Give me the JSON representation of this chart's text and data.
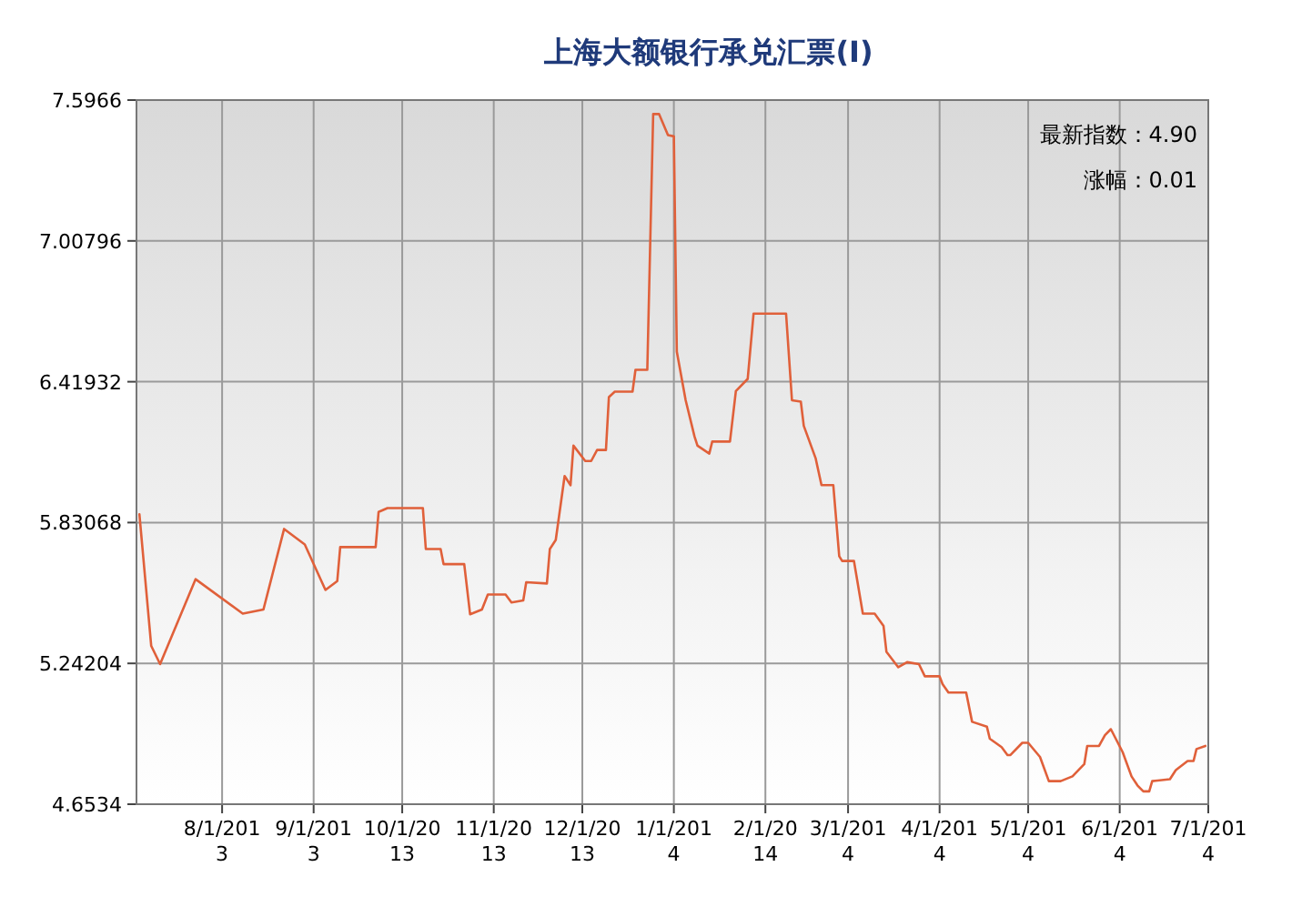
{
  "chart_data": {
    "type": "line",
    "title": "上海大额银行承兑汇票(Ⅰ)",
    "x": [
      "2013-07-04",
      "2013-07-08",
      "2013-07-11",
      "2013-07-23",
      "2013-08-08",
      "2013-08-15",
      "2013-08-22",
      "2013-08-29",
      "2013-09-05",
      "2013-09-09",
      "2013-09-10",
      "2013-09-22",
      "2013-09-23",
      "2013-09-26",
      "2013-10-08",
      "2013-10-09",
      "2013-10-14",
      "2013-10-15",
      "2013-10-22",
      "2013-10-24",
      "2013-10-28",
      "2013-10-30",
      "2013-11-05",
      "2013-11-07",
      "2013-11-11",
      "2013-11-12",
      "2013-11-19",
      "2013-11-20",
      "2013-11-22",
      "2013-11-25",
      "2013-11-27",
      "2013-11-28",
      "2013-12-02",
      "2013-12-04",
      "2013-12-06",
      "2013-12-09",
      "2013-12-10",
      "2013-12-12",
      "2013-12-18",
      "2013-12-19",
      "2013-12-23",
      "2013-12-25",
      "2013-12-27",
      "2013-12-30",
      "2014-01-01",
      "2014-01-02",
      "2014-01-05",
      "2014-01-08",
      "2014-01-09",
      "2014-01-13",
      "2014-01-14",
      "2014-01-20",
      "2014-01-22",
      "2014-01-26",
      "2014-01-28",
      "2014-02-08",
      "2014-02-10",
      "2014-02-13",
      "2014-02-14",
      "2014-02-18",
      "2014-02-20",
      "2014-02-24",
      "2014-02-26",
      "2014-02-27",
      "2014-03-03",
      "2014-03-06",
      "2014-03-10",
      "2014-03-13",
      "2014-03-14",
      "2014-03-18",
      "2014-03-21",
      "2014-03-25",
      "2014-03-27",
      "2014-04-01",
      "2014-04-02",
      "2014-04-04",
      "2014-04-10",
      "2014-04-12",
      "2014-04-17",
      "2014-04-18",
      "2014-04-22",
      "2014-04-24",
      "2014-04-25",
      "2014-04-29",
      "2014-05-01",
      "2014-05-05",
      "2014-05-08",
      "2014-05-12",
      "2014-05-16",
      "2014-05-20",
      "2014-05-21",
      "2014-05-25",
      "2014-05-27",
      "2014-05-29",
      "2014-06-02",
      "2014-06-05",
      "2014-06-07",
      "2014-06-09",
      "2014-06-11",
      "2014-06-12",
      "2014-06-18",
      "2014-06-20",
      "2014-06-24",
      "2014-06-26",
      "2014-06-27",
      "2014-06-30"
    ],
    "series": [
      {
        "color": "#e0603a",
        "values": [
          5.865,
          5.315,
          5.239,
          5.594,
          5.45,
          5.467,
          5.804,
          5.739,
          5.549,
          5.586,
          5.728,
          5.728,
          5.875,
          5.891,
          5.891,
          5.72,
          5.72,
          5.657,
          5.657,
          5.447,
          5.467,
          5.53,
          5.53,
          5.497,
          5.505,
          5.581,
          5.576,
          5.72,
          5.758,
          6.025,
          5.987,
          6.152,
          6.088,
          6.088,
          6.134,
          6.134,
          6.355,
          6.378,
          6.378,
          6.469,
          6.469,
          7.538,
          7.538,
          7.45,
          7.445,
          6.545,
          6.342,
          6.19,
          6.152,
          6.119,
          6.169,
          6.169,
          6.38,
          6.431,
          6.704,
          6.704,
          6.342,
          6.336,
          6.235,
          6.1,
          5.987,
          5.987,
          5.69,
          5.67,
          5.67,
          5.45,
          5.45,
          5.399,
          5.29,
          5.226,
          5.247,
          5.239,
          5.188,
          5.188,
          5.155,
          5.12,
          5.12,
          4.998,
          4.978,
          4.927,
          4.892,
          4.859,
          4.859,
          4.91,
          4.91,
          4.851,
          4.75,
          4.75,
          4.77,
          4.821,
          4.897,
          4.897,
          4.942,
          4.967,
          4.871,
          4.77,
          4.732,
          4.707,
          4.707,
          4.75,
          4.758,
          4.796,
          4.834,
          4.834,
          4.884,
          4.897
        ]
      }
    ],
    "xlim": [
      "2013-07-03",
      "2014-07-01"
    ],
    "xticks": [
      {
        "value": "2013-08-01",
        "label": "8/1/201\n3"
      },
      {
        "value": "2013-09-01",
        "label": "9/1/201\n3"
      },
      {
        "value": "2013-10-01",
        "label": "10/1/20\n13"
      },
      {
        "value": "2013-11-01",
        "label": "11/1/20\n13"
      },
      {
        "value": "2013-12-01",
        "label": "12/1/20\n13"
      },
      {
        "value": "2014-01-01",
        "label": "1/1/201\n4"
      },
      {
        "value": "2014-02-01",
        "label": "2/1/20\n14"
      },
      {
        "value": "2014-03-01",
        "label": "3/1/201\n4"
      },
      {
        "value": "2014-04-01",
        "label": "4/1/201\n4"
      },
      {
        "value": "2014-05-01",
        "label": "5/1/201\n4"
      },
      {
        "value": "2014-06-01",
        "label": "6/1/201\n4"
      },
      {
        "value": "2014-07-01",
        "label": "7/1/201\n4"
      }
    ],
    "ylim": [
      4.6534,
      7.5966
    ],
    "yticks": [
      4.6534,
      5.24204,
      5.83068,
      6.41932,
      7.00796,
      7.5966
    ],
    "grid": true,
    "annotations": [
      "最新指数：4.90",
      "涨幅：0.01"
    ]
  }
}
